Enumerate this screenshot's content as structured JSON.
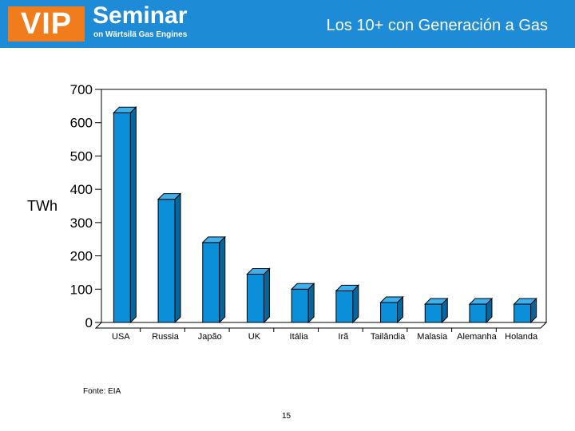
{
  "header": {
    "logo_vip": "VIP",
    "logo_seminar": "Seminar",
    "logo_sub": "on Wärtsilä Gas Engines",
    "title": "Los 10+ con Generación a Gas"
  },
  "colors": {
    "header_bg": "#1d8bd6",
    "logo_orange": "#f07c1c",
    "bar_front": "#0a8fd8",
    "bar_side": "#05669e",
    "bar_top": "#3fb0ee"
  },
  "chart_data": {
    "type": "bar",
    "categories": [
      "USA",
      "Russia",
      "Japão",
      "UK",
      "Itália",
      "Irã",
      "Tailândia",
      "Malasia",
      "Alemanha",
      "Holanda"
    ],
    "values": [
      630,
      370,
      240,
      145,
      100,
      95,
      60,
      55,
      55,
      55
    ],
    "ylabel": "TWh",
    "ylim": [
      0,
      700
    ],
    "yticks": [
      "0",
      "100",
      "200",
      "300",
      "400",
      "500",
      "600",
      "700"
    ],
    "grid": false,
    "style": "3d-bars"
  },
  "footer": {
    "source": "Fonte: EIA",
    "page_number": "15"
  }
}
